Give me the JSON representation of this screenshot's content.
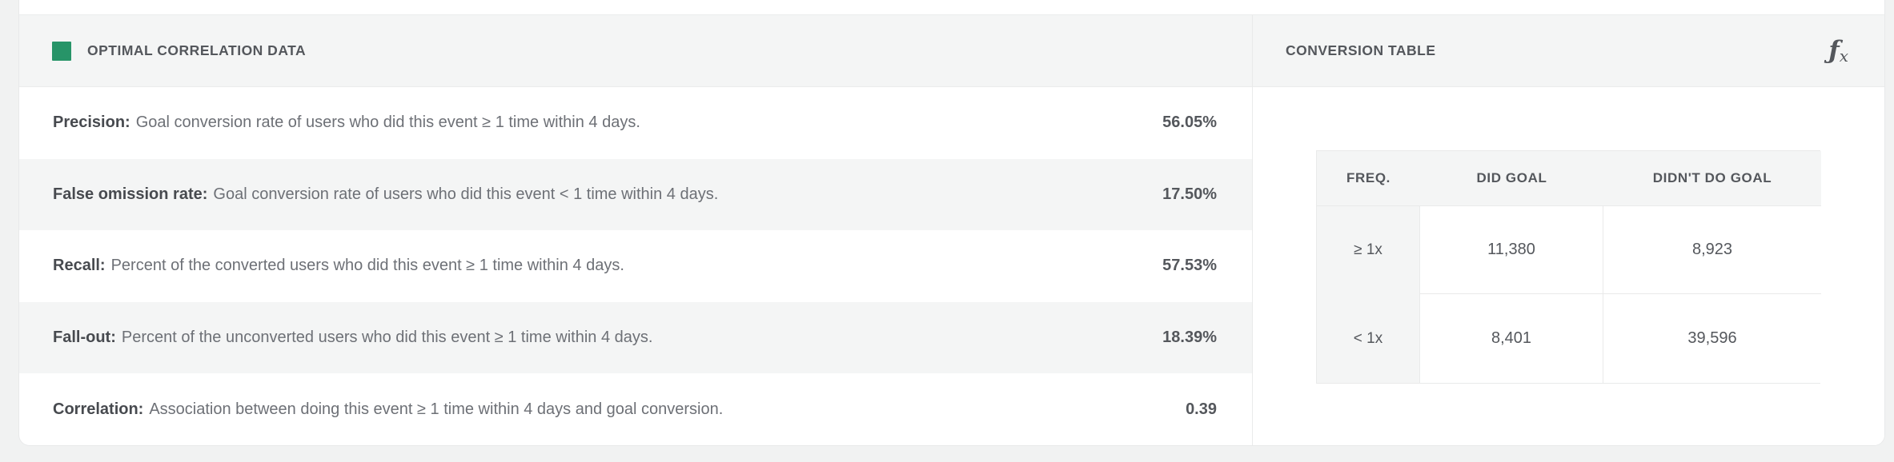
{
  "colors": {
    "accent_green": "#279468",
    "page_background": "#f1f2f2",
    "band_gray": "#f4f5f5",
    "border_gray": "#e9eaea",
    "text_dark": "#54575c"
  },
  "left_panel": {
    "header": {
      "title": "OPTIMAL CORRELATION DATA"
    },
    "rows": [
      {
        "label": "Precision:",
        "description": "Goal conversion rate of users who did this event ≥ 1 time within 4 days.",
        "value": "56.05%"
      },
      {
        "label": "False omission rate:",
        "description": "Goal conversion rate of users who did this event < 1 time within 4 days.",
        "value": "17.50%"
      },
      {
        "label": "Recall:",
        "description": "Percent of the converted users who did this event ≥ 1 time within 4 days.",
        "value": "57.53%"
      },
      {
        "label": "Fall-out:",
        "description": "Percent of the unconverted users who did this event ≥ 1 time within 4 days.",
        "value": "18.39%"
      },
      {
        "label": "Correlation:",
        "description": "Association between doing this event ≥ 1 time within 4 days and goal conversion.",
        "value": "0.39"
      }
    ]
  },
  "right_panel": {
    "header": {
      "title": "CONVERSION TABLE",
      "formula_icon": {
        "f": "ƒ",
        "x": "x"
      }
    },
    "table": {
      "columns": [
        "FREQ.",
        "DID GOAL",
        "DIDN'T DO GOAL"
      ],
      "rows": [
        {
          "freq": "≥ 1x",
          "did_goal": "11,380",
          "didnt_do_goal": "8,923"
        },
        {
          "freq": "< 1x",
          "did_goal": "8,401",
          "didnt_do_goal": "39,596"
        }
      ]
    }
  }
}
